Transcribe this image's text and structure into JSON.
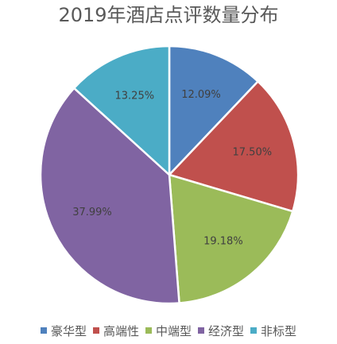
{
  "chart_data": {
    "type": "pie",
    "title": "2019年酒店点评数量分布",
    "legend_position": "bottom",
    "categories": [
      "豪华型",
      "高端性",
      "中端型",
      "经济型",
      "非标型"
    ],
    "values": [
      12.09,
      17.5,
      19.18,
      37.99,
      13.25
    ],
    "labels": [
      "12.09%",
      "17.50%",
      "19.18%",
      "37.99%",
      "13.25%"
    ],
    "colors": [
      "#4f81bd",
      "#c0504d",
      "#9bbb59",
      "#8064a2",
      "#4bacc6"
    ]
  }
}
